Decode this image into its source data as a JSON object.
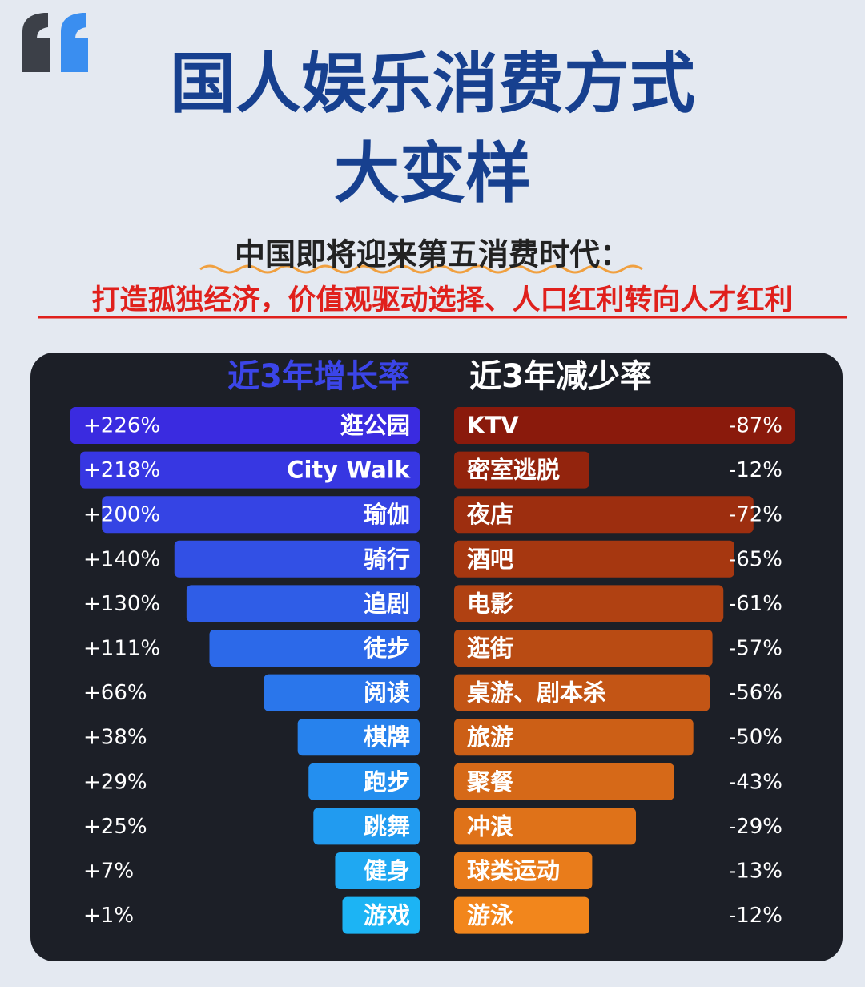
{
  "chart_data": {
    "type": "bar",
    "title_lines": [
      "国人娱乐消费方式",
      "大变样"
    ],
    "subtitle": "中国即将迎来第五消费时代：",
    "tagline": "打造孤独经济，价值观驱动选择、人口红利转向人才红利",
    "series": [
      {
        "name": "近3年增长率",
        "colors": [
          "#3a2be0",
          "#1cb4f4"
        ],
        "categories": [
          "逛公园",
          "City Walk",
          "瑜伽",
          "骑行",
          "追剧",
          "徒步",
          "阅读",
          "棋牌",
          "跑步",
          "跳舞",
          "健身",
          "游戏"
        ],
        "values": [
          226,
          218,
          200,
          140,
          130,
          111,
          66,
          38,
          29,
          25,
          7,
          1
        ],
        "value_labels": [
          "+226%",
          "+218%",
          "+200%",
          "+140%",
          "+130%",
          "+111%",
          "+66%",
          "+38%",
          "+29%",
          "+25%",
          "+7%",
          "+1%"
        ]
      },
      {
        "name": "近3年减少率",
        "colors": [
          "#8a1a0c",
          "#f2861c"
        ],
        "categories": [
          "KTV",
          "密室逃脱",
          "夜店",
          "酒吧",
          "电影",
          "逛街",
          "桌游、剧本杀",
          "旅游",
          "聚餐",
          "冲浪",
          "球类运动",
          "游泳"
        ],
        "values": [
          -87,
          -12,
          -72,
          -65,
          -61,
          -57,
          -56,
          -50,
          -43,
          -29,
          -13,
          -12
        ],
        "value_labels": [
          "-87%",
          "-12%",
          "-72%",
          "-65%",
          "-61%",
          "-57%",
          "-56%",
          "-50%",
          "-43%",
          "-29%",
          "-13%",
          "-12%"
        ]
      }
    ]
  }
}
